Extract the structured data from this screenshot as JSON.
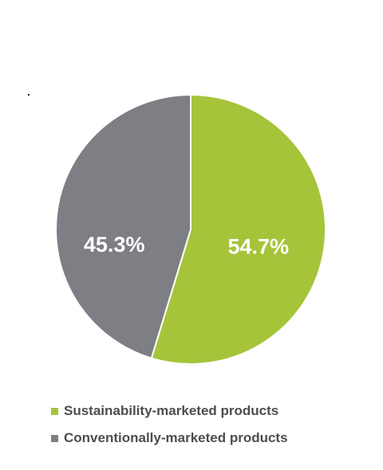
{
  "chart_data": {
    "type": "pie",
    "slices": [
      {
        "label": "Sustainability-marketed products",
        "value": 54.7,
        "display": "54.7%",
        "color": "#a5c43a"
      },
      {
        "label": "Conventionally-marketed products",
        "value": 45.3,
        "display": "45.3%",
        "color": "#7e7f84"
      }
    ],
    "start_angle": "12 o'clock",
    "direction": "clockwise",
    "legend_position": "bottom-left"
  },
  "legend": {
    "items": [
      {
        "label": "Sustainability-marketed products",
        "color": "#a5c43a"
      },
      {
        "label": "Conventionally-marketed products",
        "color": "#7e7f84"
      }
    ]
  }
}
